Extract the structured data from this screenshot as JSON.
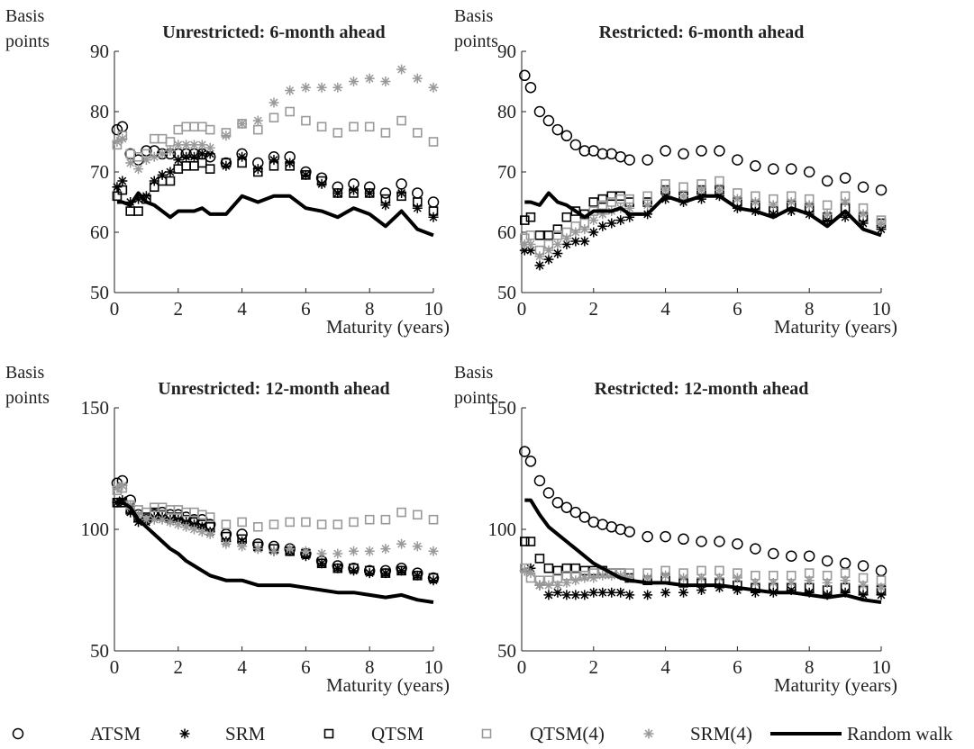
{
  "chart_data": [
    {
      "type": "line",
      "title": "Unrestricted: 6-month ahead",
      "ylabel": "Basis points",
      "xlabel": "Maturity (years)",
      "xlim": [
        0,
        10
      ],
      "xticks": [
        0,
        2,
        4,
        6,
        8,
        10
      ],
      "ylim": [
        50,
        90
      ],
      "yticks": [
        50,
        60,
        70,
        80,
        90
      ],
      "x": [
        0.083,
        0.25,
        0.5,
        0.75,
        1,
        1.25,
        1.5,
        1.75,
        2,
        2.25,
        2.5,
        2.75,
        3,
        3.5,
        4,
        4.5,
        5,
        5.5,
        6,
        6.5,
        7,
        7.5,
        8,
        8.5,
        9,
        9.5,
        10
      ],
      "series": [
        {
          "name": "ATSM",
          "color": "#000000",
          "marker": "circle",
          "values": [
            77,
            77.5,
            73,
            72,
            73.5,
            73.5,
            73,
            73,
            73,
            73,
            73,
            73,
            72.5,
            71.5,
            73,
            71.5,
            72.5,
            72.5,
            70,
            69,
            67.5,
            68,
            67.5,
            66.5,
            68,
            66.5,
            65
          ]
        },
        {
          "name": "SRM",
          "color": "#000000",
          "marker": "asterisk",
          "values": [
            67.5,
            68.5,
            65,
            65.5,
            66,
            68.5,
            69.5,
            70,
            72,
            72.5,
            72.5,
            73,
            73,
            71,
            72.5,
            70.5,
            72,
            71.5,
            69.5,
            68,
            66.5,
            67,
            66.5,
            64.5,
            66.5,
            64,
            62.5
          ]
        },
        {
          "name": "QTSM",
          "color": "#000000",
          "marker": "square",
          "values": [
            66,
            67,
            63.5,
            63.5,
            65.5,
            67.5,
            68.5,
            68.5,
            70.5,
            71,
            71,
            71.5,
            70.5,
            71.5,
            71.5,
            70,
            71,
            71,
            69.5,
            68.5,
            66.5,
            66.5,
            66.5,
            65.5,
            66,
            65,
            63.5
          ]
        },
        {
          "name": "QTSM(4)",
          "color": "#999999",
          "marker": "square",
          "values": [
            74.5,
            76,
            73,
            72.5,
            73,
            75.5,
            75.5,
            75,
            77,
            77.5,
            77.5,
            77.5,
            77,
            76.5,
            78,
            77,
            79,
            80,
            78.5,
            77.5,
            76.5,
            77.5,
            77.5,
            76.5,
            78.5,
            76.5,
            75
          ]
        },
        {
          "name": "SRM(4)",
          "color": "#999999",
          "marker": "asterisk",
          "values": [
            75,
            75.5,
            71.5,
            70.5,
            72,
            72.5,
            73,
            73.5,
            74.5,
            74.5,
            74.5,
            74.5,
            74,
            76,
            78,
            78.5,
            81.5,
            83.5,
            84,
            84,
            84,
            85,
            85.5,
            85,
            87,
            85.5,
            84
          ]
        },
        {
          "name": "Random walk",
          "color": "#000000",
          "marker": "line",
          "values": [
            65,
            65,
            64.5,
            66.5,
            65,
            64.5,
            63.5,
            62.5,
            63.5,
            63.5,
            63.5,
            64,
            63,
            63,
            66,
            65,
            66,
            66,
            64,
            63.5,
            62.5,
            64,
            63,
            61,
            63.5,
            60.5,
            59.5
          ]
        }
      ]
    },
    {
      "type": "line",
      "title": "Restricted: 6-month ahead",
      "ylabel": "Basis points",
      "xlabel": "Maturity (years)",
      "xlim": [
        0,
        10
      ],
      "xticks": [
        0,
        2,
        4,
        6,
        8,
        10
      ],
      "ylim": [
        50,
        90
      ],
      "yticks": [
        50,
        60,
        70,
        80,
        90
      ],
      "x": [
        0.083,
        0.25,
        0.5,
        0.75,
        1,
        1.25,
        1.5,
        1.75,
        2,
        2.25,
        2.5,
        2.75,
        3,
        3.5,
        4,
        4.5,
        5,
        5.5,
        6,
        6.5,
        7,
        7.5,
        8,
        8.5,
        9,
        9.5,
        10
      ],
      "series": [
        {
          "name": "ATSM",
          "color": "#000000",
          "marker": "circle",
          "values": [
            86,
            84,
            80,
            78.5,
            77,
            76,
            74.5,
            73.5,
            73.5,
            73,
            73,
            72.5,
            72,
            72,
            73.5,
            73,
            73.5,
            73.5,
            72,
            71,
            70.5,
            70.5,
            70,
            68.5,
            69,
            67.5,
            67
          ]
        },
        {
          "name": "SRM",
          "color": "#000000",
          "marker": "asterisk",
          "values": [
            57,
            57,
            54.5,
            55.5,
            56.5,
            58,
            58.5,
            58.5,
            60,
            61,
            61.5,
            62,
            62.5,
            63,
            65.5,
            65,
            65.5,
            66,
            64,
            63.5,
            63,
            63.5,
            63,
            62,
            62.5,
            61.5,
            60.5
          ]
        },
        {
          "name": "QTSM",
          "color": "#000000",
          "marker": "square",
          "values": [
            62,
            62.5,
            59.5,
            59.5,
            60.5,
            62.5,
            63.5,
            63,
            65,
            65.5,
            66,
            66,
            65,
            65,
            67,
            66,
            67,
            67,
            65,
            64.5,
            63.5,
            64.5,
            64,
            62.5,
            64,
            62.5,
            61.5
          ]
        },
        {
          "name": "QTSM(4)",
          "color": "#999999",
          "marker": "square",
          "values": [
            59,
            59.5,
            57,
            58,
            59.5,
            60,
            61,
            61.5,
            63.5,
            64.5,
            65,
            65.5,
            65.5,
            66,
            68,
            67.5,
            68,
            68.5,
            66.5,
            66,
            65.5,
            66,
            65.5,
            64.5,
            66,
            64,
            62
          ]
        },
        {
          "name": "SRM(4)",
          "color": "#999999",
          "marker": "asterisk",
          "values": [
            58,
            58,
            56,
            57,
            58,
            59,
            60,
            60.5,
            62,
            63,
            63.5,
            64,
            64,
            64.5,
            67,
            66,
            67,
            67,
            65.5,
            65,
            64.5,
            65,
            64.5,
            63,
            65,
            63,
            61.5
          ]
        },
        {
          "name": "Random walk",
          "color": "#000000",
          "marker": "line",
          "values": [
            65,
            65,
            64.5,
            66.5,
            65,
            64.5,
            63.5,
            62.5,
            63.5,
            63.5,
            63.5,
            64,
            63,
            63,
            66,
            65,
            66,
            66,
            64,
            63.5,
            62.5,
            64,
            63,
            61,
            63.5,
            60.5,
            59.5
          ]
        }
      ]
    },
    {
      "type": "line",
      "title": "Unrestricted: 12-month ahead",
      "ylabel": "Basis points",
      "xlabel": "Maturity (years)",
      "xlim": [
        0,
        10
      ],
      "xticks": [
        0,
        2,
        4,
        6,
        8,
        10
      ],
      "ylim": [
        50,
        150
      ],
      "yticks": [
        50,
        100,
        150
      ],
      "x": [
        0.083,
        0.25,
        0.5,
        0.75,
        1,
        1.25,
        1.5,
        1.75,
        2,
        2.25,
        2.5,
        2.75,
        3,
        3.5,
        4,
        4.5,
        5,
        5.5,
        6,
        6.5,
        7,
        7.5,
        8,
        8.5,
        9,
        9.5,
        10
      ],
      "series": [
        {
          "name": "ATSM",
          "color": "#000000",
          "marker": "circle",
          "values": [
            119,
            120,
            112,
            106,
            104,
            106,
            107,
            106,
            106,
            105,
            104,
            104,
            102,
            98,
            98,
            94,
            93,
            92,
            90,
            87,
            85,
            84,
            83,
            83,
            84,
            82,
            80
          ]
        },
        {
          "name": "SRM",
          "color": "#000000",
          "marker": "asterisk",
          "values": [
            111,
            112,
            107,
            103,
            103,
            105,
            105,
            104,
            104,
            103,
            102,
            101,
            99,
            95,
            95,
            92,
            91,
            91,
            89,
            86,
            84,
            83,
            82,
            82,
            83,
            81,
            79
          ]
        },
        {
          "name": "QTSM",
          "color": "#000000",
          "marker": "square",
          "values": [
            111,
            111,
            108,
            105,
            105,
            107,
            106,
            105,
            105,
            104,
            103,
            102,
            101,
            97,
            96,
            93,
            92,
            91,
            90,
            86,
            84,
            84,
            83,
            82,
            83,
            81,
            80
          ]
        },
        {
          "name": "QTSM(4)",
          "color": "#999999",
          "marker": "square",
          "values": [
            116,
            117,
            110,
            108,
            107,
            109,
            109,
            108,
            108,
            107,
            107,
            106,
            105,
            102,
            103,
            101,
            102,
            103,
            103,
            102,
            102,
            103,
            104,
            104,
            107,
            106,
            104
          ]
        },
        {
          "name": "SRM(4)",
          "color": "#999999",
          "marker": "asterisk",
          "values": [
            117,
            118,
            110,
            106,
            104,
            104,
            104,
            103,
            102,
            101,
            100,
            99,
            98,
            94,
            93,
            92,
            91,
            92,
            91,
            90,
            90,
            91,
            91,
            92,
            94,
            93,
            91
          ]
        },
        {
          "name": "Random walk",
          "color": "#000000",
          "marker": "line",
          "values": [
            111,
            111,
            109,
            104,
            101,
            98,
            95,
            92,
            90,
            87,
            85,
            83,
            81,
            79,
            79,
            77,
            77,
            77,
            76,
            75,
            74,
            74,
            73,
            72,
            73,
            71,
            70
          ]
        }
      ]
    },
    {
      "type": "line",
      "title": "Restricted: 12-month ahead",
      "ylabel": "Basis points",
      "xlabel": "Maturity (years)",
      "xlim": [
        0,
        10
      ],
      "xticks": [
        0,
        2,
        4,
        6,
        8,
        10
      ],
      "ylim": [
        50,
        150
      ],
      "yticks": [
        50,
        100,
        150
      ],
      "x": [
        0.083,
        0.25,
        0.5,
        0.75,
        1,
        1.25,
        1.5,
        1.75,
        2,
        2.25,
        2.5,
        2.75,
        3,
        3.5,
        4,
        4.5,
        5,
        5.5,
        6,
        6.5,
        7,
        7.5,
        8,
        8.5,
        9,
        9.5,
        10
      ],
      "series": [
        {
          "name": "ATSM",
          "color": "#000000",
          "marker": "circle",
          "values": [
            132,
            128,
            120,
            115,
            111,
            109,
            107,
            105,
            103,
            102,
            101,
            100,
            99,
            97,
            97,
            96,
            95,
            95,
            94,
            92,
            90,
            89,
            89,
            87,
            86,
            85,
            83
          ]
        },
        {
          "name": "SRM",
          "color": "#000000",
          "marker": "asterisk",
          "values": [
            83,
            84,
            77,
            73,
            74,
            73,
            73,
            73,
            74,
            74,
            74,
            74,
            73,
            73,
            74,
            74,
            75,
            76,
            75,
            74,
            74,
            75,
            74,
            73,
            74,
            73,
            73
          ]
        },
        {
          "name": "QTSM",
          "color": "#000000",
          "marker": "square",
          "values": [
            95,
            95,
            88,
            84,
            83,
            84,
            84,
            83,
            83,
            83,
            82,
            82,
            80,
            79,
            80,
            78,
            78,
            78,
            77,
            76,
            76,
            76,
            76,
            75,
            76,
            75,
            75
          ]
        },
        {
          "name": "QTSM(4)",
          "color": "#999999",
          "marker": "square",
          "values": [
            84,
            80,
            79,
            79,
            80,
            81,
            81,
            81,
            82,
            82,
            82,
            82,
            82,
            82,
            83,
            82,
            83,
            83,
            82,
            81,
            81,
            81,
            82,
            81,
            82,
            80,
            79
          ]
        },
        {
          "name": "SRM(4)",
          "color": "#999999",
          "marker": "asterisk",
          "values": [
            83,
            82,
            77,
            77,
            77,
            78,
            79,
            80,
            80,
            81,
            81,
            81,
            80,
            80,
            81,
            80,
            80,
            80,
            80,
            78,
            78,
            78,
            79,
            78,
            79,
            77,
            76
          ]
        },
        {
          "name": "Random walk",
          "color": "#000000",
          "marker": "line",
          "values": [
            112,
            112,
            106,
            101,
            98,
            95,
            92,
            89,
            86,
            84,
            82,
            80,
            79,
            78,
            78,
            77,
            77,
            77,
            76,
            75,
            74,
            74,
            73,
            72,
            73,
            71,
            70
          ]
        }
      ]
    }
  ]
}
